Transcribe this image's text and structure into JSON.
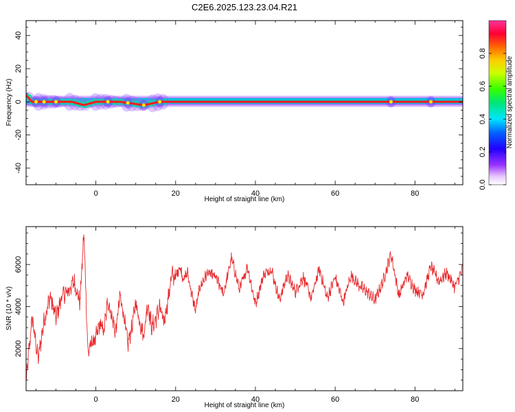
{
  "title": "C2E6.2025.123.23.04.R21",
  "colors": {
    "snr_line": "#e8282b",
    "frame": "#000000"
  },
  "chart_data": [
    {
      "type": "heatmap",
      "title": "C2E6.2025.123.23.04.R21",
      "xlabel": "Height of straight line (km)",
      "ylabel": "Frequency (Hz)",
      "xlim": [
        -17.5,
        92
      ],
      "ylim": [
        -50,
        49
      ],
      "xticks": [
        0,
        20,
        40,
        60,
        80
      ],
      "yticks": [
        -40,
        -20,
        0,
        20,
        40
      ],
      "colorbar": {
        "label": "Normalized spectral amplitude",
        "range": [
          0,
          1
        ],
        "ticks": [
          "0.0",
          "0.2",
          "0.4",
          "0.6",
          "0.8"
        ],
        "colormap": "rainbow (white-violet-blue-cyan-green-yellow-orange-red-magenta)"
      },
      "ridge": {
        "description": "dominant spectral peak near 0 Hz across the full height range",
        "x": [
          -17.5,
          -16,
          -14,
          -10,
          -6,
          -3,
          0,
          3,
          6,
          9,
          12,
          16,
          20,
          40,
          60,
          80,
          92
        ],
        "y": [
          4,
          0,
          0,
          0,
          0,
          -2,
          0,
          0,
          0,
          -1,
          -2,
          0,
          0,
          0,
          0,
          0,
          0
        ]
      }
    },
    {
      "type": "line",
      "xlabel": "Height of straight line (km)",
      "ylabel": "SNR (10 * v/v)",
      "xlim": [
        -17.5,
        92
      ],
      "ylim": [
        0,
        7800
      ],
      "xticks": [
        0,
        20,
        40,
        60,
        80
      ],
      "yticks": [
        2000,
        4000,
        6000
      ],
      "x": [
        -17.5,
        -16,
        -14.5,
        -13,
        -11.5,
        -10,
        -8.5,
        -7,
        -5.5,
        -4,
        -3,
        -2,
        -1,
        0,
        1,
        2,
        3,
        4,
        5,
        6,
        7,
        8,
        9,
        10,
        11,
        12,
        13,
        14,
        15,
        16,
        17,
        18,
        19,
        20,
        21,
        22,
        23,
        24,
        25,
        26,
        28,
        30,
        32,
        34,
        36,
        38,
        40,
        42,
        44,
        46,
        48,
        50,
        52,
        54,
        56,
        58,
        60,
        62,
        64,
        66,
        68,
        70,
        72,
        74,
        76,
        78,
        80,
        82,
        84,
        86,
        88,
        90,
        92
      ],
      "y": [
        400,
        3500,
        1500,
        3300,
        4500,
        3500,
        4500,
        4700,
        5200,
        4200,
        7500,
        1800,
        2300,
        2500,
        3200,
        2800,
        4300,
        3500,
        2800,
        4500,
        3600,
        2200,
        3000,
        4200,
        3300,
        2600,
        4200,
        3000,
        3400,
        4000,
        3200,
        4200,
        5500,
        5400,
        5900,
        5300,
        5600,
        4600,
        3800,
        4900,
        5600,
        5400,
        4600,
        6300,
        4800,
        5900,
        4100,
        5500,
        5800,
        4300,
        5500,
        4700,
        5400,
        4400,
        5800,
        4400,
        5400,
        4200,
        5500,
        5000,
        4700,
        4300,
        5200,
        6500,
        4500,
        5500,
        4800,
        4600,
        5900,
        5200,
        5600,
        4900,
        5800
      ]
    }
  ]
}
